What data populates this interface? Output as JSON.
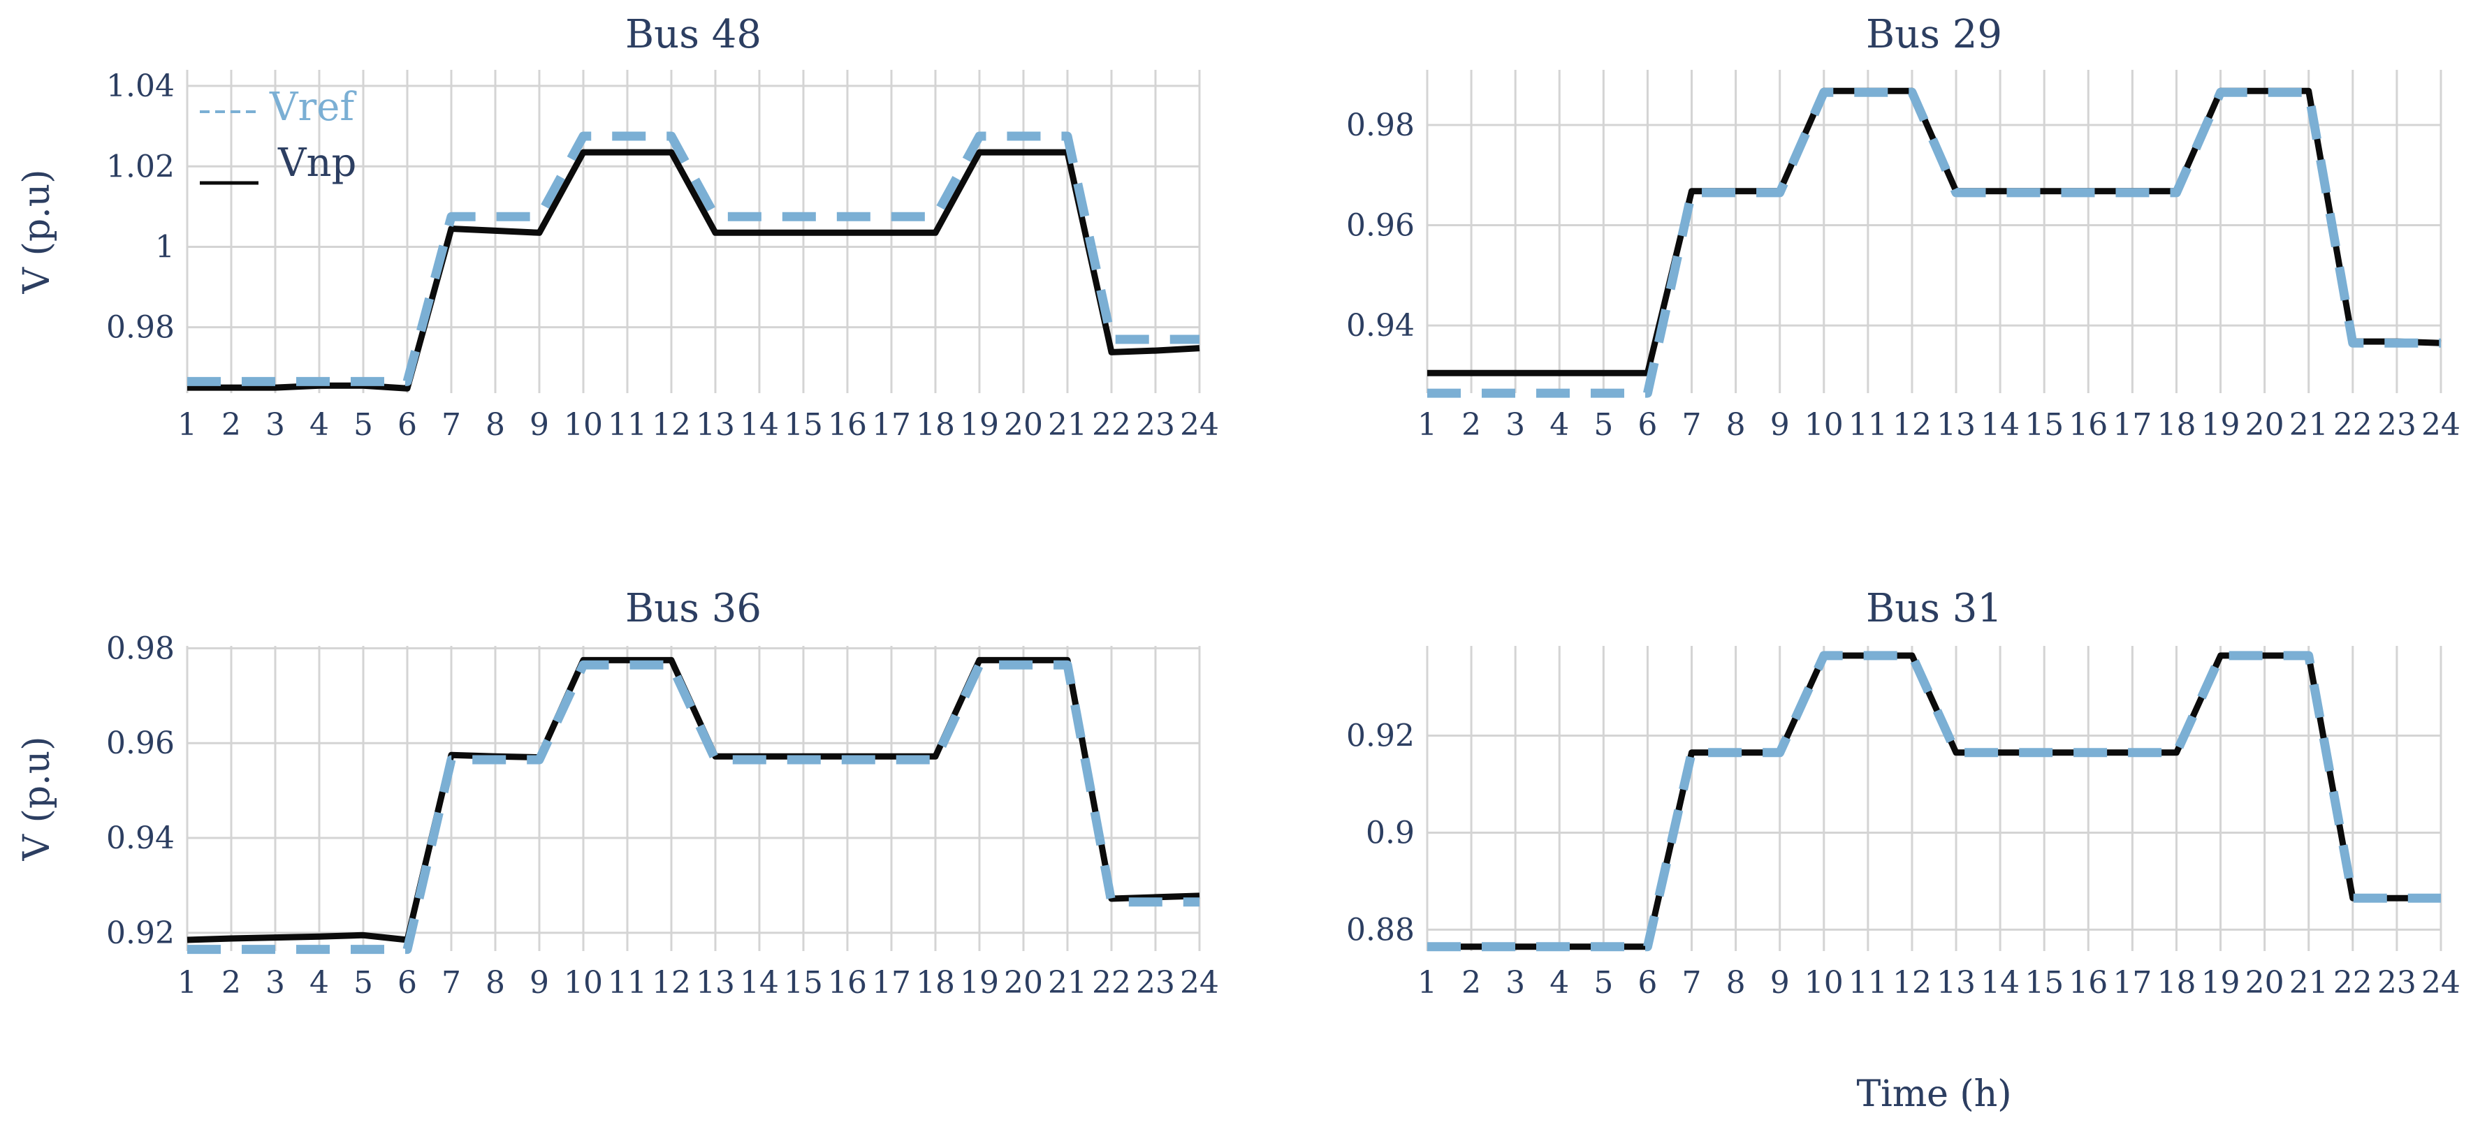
{
  "figure": {
    "xlabel": "Time (h)"
  },
  "colors": {
    "vref": "#7bafd4",
    "vnp": "#0b0b0b",
    "text": "#2c3e61",
    "grid": "#d4d4d4"
  },
  "legend": {
    "vref_label": "Vref",
    "vnp_label": "Vnp"
  },
  "chart_data": [
    {
      "type": "line",
      "title": "Bus 48",
      "ylabel": "V (p.u)",
      "xlabel": "",
      "x": [
        1,
        2,
        3,
        4,
        5,
        6,
        7,
        8,
        9,
        10,
        11,
        12,
        13,
        14,
        15,
        16,
        17,
        18,
        19,
        20,
        21,
        22,
        23,
        24
      ],
      "xlim": [
        1,
        24
      ],
      "ylim": [
        0.9605,
        1.044
      ],
      "yticks": [
        0.98,
        1,
        1.02,
        1.04
      ],
      "ytick_labels": [
        "0.98",
        "1",
        "1.02",
        "1.04"
      ],
      "legend": "top-left",
      "grid": true,
      "series": [
        {
          "name": "Vref",
          "style": "dashed",
          "values": [
            0.9665,
            0.9665,
            0.9665,
            0.9665,
            0.9665,
            0.9665,
            1.0075,
            1.0075,
            1.0075,
            1.0275,
            1.0275,
            1.0275,
            1.0075,
            1.0075,
            1.0075,
            1.0075,
            1.0075,
            1.0075,
            1.0275,
            1.0275,
            1.0275,
            0.977,
            0.977,
            0.977
          ]
        },
        {
          "name": "Vnp",
          "style": "solid",
          "values": [
            0.965,
            0.965,
            0.965,
            0.9655,
            0.9655,
            0.9648,
            1.0045,
            1.004,
            1.0035,
            1.0235,
            1.0235,
            1.0235,
            1.0035,
            1.0035,
            1.0035,
            1.0035,
            1.0035,
            1.0035,
            1.0235,
            1.0235,
            1.0235,
            0.9738,
            0.9742,
            0.9748
          ]
        }
      ]
    },
    {
      "type": "line",
      "title": "Bus 29",
      "ylabel": "",
      "xlabel": "Time (h)",
      "x": [
        1,
        2,
        3,
        4,
        5,
        6,
        7,
        8,
        9,
        10,
        11,
        12,
        13,
        14,
        15,
        16,
        17,
        18,
        19,
        20,
        21,
        22,
        23,
        24
      ],
      "xlim": [
        1,
        24
      ],
      "ylim": [
        0.924,
        0.991
      ],
      "yticks": [
        0.94,
        0.96,
        0.98
      ],
      "ytick_labels": [
        "0.94",
        "0.96",
        "0.98"
      ],
      "grid": true,
      "series": [
        {
          "name": "Vref",
          "style": "dashed",
          "values": [
            0.9265,
            0.9265,
            0.9265,
            0.9265,
            0.9265,
            0.9265,
            0.9665,
            0.9665,
            0.9665,
            0.9865,
            0.9865,
            0.9865,
            0.9665,
            0.9665,
            0.9665,
            0.9665,
            0.9665,
            0.9665,
            0.9865,
            0.9865,
            0.9865,
            0.9365,
            0.9365,
            0.9365
          ]
        },
        {
          "name": "Vnp",
          "style": "dashed",
          "values": [
            0.9305,
            0.9305,
            0.9305,
            0.9305,
            0.9305,
            0.9305,
            0.9668,
            0.9668,
            0.9668,
            0.9868,
            0.9868,
            0.9868,
            0.9668,
            0.9668,
            0.9668,
            0.9668,
            0.9668,
            0.9668,
            0.9868,
            0.9868,
            0.9868,
            0.9368,
            0.9368,
            0.9365
          ]
        }
      ]
    },
    {
      "type": "line",
      "title": "Bus 36",
      "ylabel": "V (p.u)",
      "xlabel": "",
      "x": [
        1,
        2,
        3,
        4,
        5,
        6,
        7,
        8,
        9,
        10,
        11,
        12,
        13,
        14,
        15,
        16,
        17,
        18,
        19,
        20,
        21,
        22,
        23,
        24
      ],
      "xlim": [
        1,
        24
      ],
      "ylim": [
        0.9135,
        0.9805
      ],
      "yticks": [
        0.92,
        0.94,
        0.96,
        0.98
      ],
      "ytick_labels": [
        "0.92",
        "0.94",
        "0.96",
        "0.98"
      ],
      "grid": true,
      "series": [
        {
          "name": "Vref",
          "style": "dashed",
          "values": [
            0.9165,
            0.9165,
            0.9165,
            0.9165,
            0.9165,
            0.9165,
            0.9565,
            0.9565,
            0.9565,
            0.9765,
            0.9765,
            0.9765,
            0.9565,
            0.9565,
            0.9565,
            0.9565,
            0.9565,
            0.9565,
            0.9765,
            0.9765,
            0.9765,
            0.9265,
            0.9265,
            0.9265
          ]
        },
        {
          "name": "Vnp",
          "style": "solid",
          "values": [
            0.9185,
            0.9188,
            0.919,
            0.9192,
            0.9195,
            0.9185,
            0.9575,
            0.9572,
            0.957,
            0.9775,
            0.9775,
            0.9775,
            0.9572,
            0.9572,
            0.9572,
            0.9572,
            0.9572,
            0.9572,
            0.9775,
            0.9775,
            0.9775,
            0.9272,
            0.9275,
            0.9278
          ]
        }
      ]
    },
    {
      "type": "line",
      "title": "Bus 31",
      "ylabel": "",
      "xlabel": "Time (h)",
      "x": [
        1,
        2,
        3,
        4,
        5,
        6,
        7,
        8,
        9,
        10,
        11,
        12,
        13,
        14,
        15,
        16,
        17,
        18,
        19,
        20,
        21,
        22,
        23,
        24
      ],
      "xlim": [
        1,
        24
      ],
      "ylim": [
        0.873,
        0.9385
      ],
      "yticks": [
        0.88,
        0.9,
        0.92
      ],
      "ytick_labels": [
        "0.88",
        "0.9",
        "0.92"
      ],
      "grid": true,
      "series": [
        {
          "name": "Vref",
          "style": "dashed",
          "values": [
            0.8765,
            0.8765,
            0.8765,
            0.8765,
            0.8765,
            0.8765,
            0.9165,
            0.9165,
            0.9165,
            0.9365,
            0.9365,
            0.9365,
            0.9165,
            0.9165,
            0.9165,
            0.9165,
            0.9165,
            0.9165,
            0.9365,
            0.9365,
            0.9365,
            0.8865,
            0.8865,
            0.8865
          ]
        },
        {
          "name": "Vnp",
          "style": "dashed",
          "values": [
            0.8765,
            0.8765,
            0.8765,
            0.8765,
            0.8765,
            0.8765,
            0.9165,
            0.9165,
            0.9165,
            0.9365,
            0.9365,
            0.9365,
            0.9165,
            0.9165,
            0.9165,
            0.9165,
            0.9165,
            0.9165,
            0.9365,
            0.9365,
            0.9365,
            0.8865,
            0.8865,
            0.8865
          ]
        }
      ]
    }
  ]
}
